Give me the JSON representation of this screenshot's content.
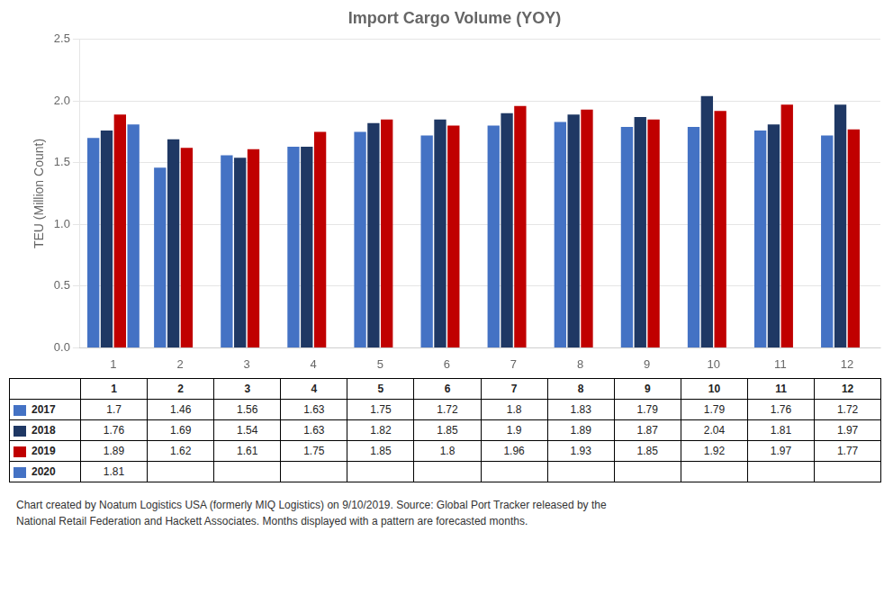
{
  "chart_data": {
    "type": "bar",
    "title": "Import Cargo Volume (YOY)",
    "ylabel": "TEU (Million Count)",
    "categories": [
      1,
      2,
      3,
      4,
      5,
      6,
      7,
      8,
      9,
      10,
      11,
      12
    ],
    "series": [
      {
        "name": "2017",
        "color": "#4472C4",
        "values": [
          1.7,
          1.46,
          1.56,
          1.63,
          1.75,
          1.72,
          1.8,
          1.83,
          1.79,
          1.79,
          1.76,
          1.72
        ]
      },
      {
        "name": "2018",
        "color": "#1F3864",
        "values": [
          1.76,
          1.69,
          1.54,
          1.63,
          1.82,
          1.85,
          1.9,
          1.89,
          1.87,
          2.04,
          1.81,
          1.97
        ]
      },
      {
        "name": "2019",
        "color": "#C00000",
        "values": [
          1.89,
          1.62,
          1.61,
          1.75,
          1.85,
          1.8,
          1.96,
          1.93,
          1.85,
          1.92,
          1.97,
          1.77
        ]
      },
      {
        "name": "2020",
        "color": "#4472C4",
        "values": [
          1.81,
          null,
          null,
          null,
          null,
          null,
          null,
          null,
          null,
          null,
          null,
          null
        ]
      }
    ],
    "ylim": [
      0,
      2.5
    ],
    "yticks": [
      {
        "value": 0,
        "label": "0.0"
      },
      0.5,
      {
        "value": 1,
        "label": "1.0"
      },
      1.5,
      {
        "value": 2,
        "label": "2.0"
      },
      2.5
    ],
    "grid": true,
    "annotations": [
      "Chart created by Noatum Logistics USA (formerly MIQ Logistics) on 9/10/2019. Source: Global Port Tracker released by the\nNational Retail Federation and Hackett Associates. Months displayed with a pattern are forecasted months."
    ]
  }
}
